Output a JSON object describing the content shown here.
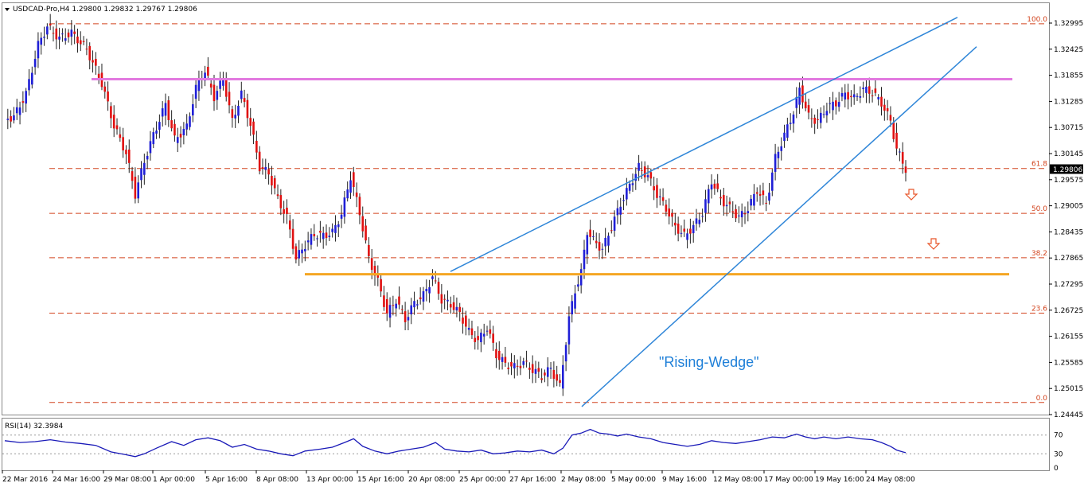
{
  "header": {
    "title": "USDCAD-Pro,H4  1.29800 1.29832 1.29767 1.29806"
  },
  "colors": {
    "bull": "#1f1fd6",
    "bear": "#e01010",
    "fib": "#d2441e",
    "resistance": "#e27ae0",
    "support": "#f5a623",
    "trend": "#2f86d8",
    "rsi": "#1a1ab8",
    "arrow": "#e8562a"
  },
  "chart_data": {
    "type": "candlestick",
    "symbol": "USDCAD-Pro",
    "timeframe": "H4",
    "ohlc_last": {
      "open": 1.298,
      "high": 1.29832,
      "low": 1.29767,
      "close": 1.29806
    },
    "current_price": "1.29806",
    "ylim": [
      1.2442,
      1.3321
    ],
    "yticks": [
      "1.32995",
      "1.32425",
      "1.31855",
      "1.31285",
      "1.30715",
      "1.30145",
      "1.29575",
      "1.29005",
      "1.28435",
      "1.27865",
      "1.27295",
      "1.26725",
      "1.26155",
      "1.25585",
      "1.25015",
      "1.24445"
    ],
    "xticks": [
      "22 Mar 2016",
      "24 Mar 16:00",
      "29 Mar 08:00",
      "1 Apr 00:00",
      "5 Apr 16:00",
      "8 Apr 08:00",
      "13 Apr 00:00",
      "15 Apr 16:00",
      "20 Apr 08:00",
      "25 Apr 00:00",
      "27 Apr 16:00",
      "2 May 08:00",
      "5 May 00:00",
      "9 May 16:00",
      "12 May 08:00",
      "17 May 00:00",
      "19 May 16:00",
      "24 May 08:00"
    ],
    "close_path": [
      [
        0,
        1.309
      ],
      [
        6,
        1.3095
      ],
      [
        14,
        1.3145
      ],
      [
        22,
        1.3252
      ],
      [
        28,
        1.3292
      ],
      [
        36,
        1.3266
      ],
      [
        44,
        1.3278
      ],
      [
        54,
        1.3242
      ],
      [
        64,
        1.3168
      ],
      [
        72,
        1.3075
      ],
      [
        80,
        1.3015
      ],
      [
        86,
        1.2925
      ],
      [
        92,
        1.2998
      ],
      [
        98,
        1.3055
      ],
      [
        106,
        1.3122
      ],
      [
        112,
        1.3045
      ],
      [
        120,
        1.3072
      ],
      [
        126,
        1.3158
      ],
      [
        132,
        1.3195
      ],
      [
        138,
        1.3138
      ],
      [
        144,
        1.3178
      ],
      [
        150,
        1.3085
      ],
      [
        156,
        1.3145
      ],
      [
        162,
        1.3078
      ],
      [
        168,
        1.2985
      ],
      [
        174,
        1.2972
      ],
      [
        180,
        1.2915
      ],
      [
        186,
        1.2875
      ],
      [
        192,
        1.2785
      ],
      [
        198,
        1.2815
      ],
      [
        204,
        1.2838
      ],
      [
        210,
        1.2835
      ],
      [
        216,
        1.2842
      ],
      [
        222,
        1.2882
      ],
      [
        228,
        1.2965
      ],
      [
        234,
        1.2885
      ],
      [
        240,
        1.2785
      ],
      [
        246,
        1.2735
      ],
      [
        252,
        1.2665
      ],
      [
        258,
        1.2695
      ],
      [
        264,
        1.2652
      ],
      [
        270,
        1.2688
      ],
      [
        276,
        1.2705
      ],
      [
        282,
        1.2745
      ],
      [
        288,
        1.2695
      ],
      [
        294,
        1.2685
      ],
      [
        300,
        1.2665
      ],
      [
        306,
        1.2625
      ],
      [
        312,
        1.2605
      ],
      [
        318,
        1.2635
      ],
      [
        324,
        1.2575
      ],
      [
        330,
        1.2555
      ],
      [
        336,
        1.2548
      ],
      [
        342,
        1.2558
      ],
      [
        348,
        1.2542
      ],
      [
        354,
        1.2528
      ],
      [
        360,
        1.2545
      ],
      [
        366,
        1.2505
      ],
      [
        372,
        1.2655
      ],
      [
        376,
        1.2715
      ],
      [
        380,
        1.2755
      ],
      [
        384,
        1.2845
      ],
      [
        388,
        1.2825
      ],
      [
        394,
        1.2805
      ],
      [
        400,
        1.2855
      ],
      [
        406,
        1.2905
      ],
      [
        412,
        1.2945
      ],
      [
        418,
        1.2985
      ],
      [
        424,
        1.2965
      ],
      [
        430,
        1.2925
      ],
      [
        436,
        1.2895
      ],
      [
        442,
        1.2855
      ],
      [
        448,
        1.2835
      ],
      [
        454,
        1.2855
      ],
      [
        460,
        1.2885
      ],
      [
        466,
        1.2955
      ],
      [
        472,
        1.2915
      ],
      [
        478,
        1.2895
      ],
      [
        484,
        1.2875
      ],
      [
        490,
        1.2895
      ],
      [
        496,
        1.2935
      ],
      [
        502,
        1.2905
      ],
      [
        508,
        1.3005
      ],
      [
        514,
        1.3055
      ],
      [
        520,
        1.3105
      ],
      [
        524,
        1.3155
      ],
      [
        530,
        1.3095
      ],
      [
        536,
        1.3085
      ],
      [
        542,
        1.3115
      ],
      [
        548,
        1.3125
      ],
      [
        554,
        1.3145
      ],
      [
        560,
        1.3135
      ],
      [
        566,
        1.3155
      ],
      [
        572,
        1.3148
      ],
      [
        578,
        1.3125
      ],
      [
        584,
        1.3085
      ],
      [
        588,
        1.3025
      ],
      [
        592,
        1.2995
      ],
      [
        594,
        1.2981
      ]
    ],
    "fibonacci": [
      {
        "label": "100.0",
        "price": 1.3298
      },
      {
        "label": "61.8",
        "price": 1.2982
      },
      {
        "label": "50.0",
        "price": 1.2884
      },
      {
        "label": "38.2",
        "price": 1.2787
      },
      {
        "label": "23.6",
        "price": 1.2666
      },
      {
        "label": "0.0",
        "price": 1.2471
      }
    ],
    "annotations": [
      {
        "type": "text",
        "text": "\"Rising-Wedge\""
      }
    ],
    "rsi": {
      "label": "RSI(14) 32.3984",
      "ylim": [
        0,
        100
      ],
      "levels": [
        "70",
        "30",
        "0"
      ],
      "values": [
        [
          0,
          58
        ],
        [
          10,
          54
        ],
        [
          20,
          56
        ],
        [
          30,
          60
        ],
        [
          40,
          55
        ],
        [
          50,
          52
        ],
        [
          60,
          48
        ],
        [
          70,
          34
        ],
        [
          80,
          28
        ],
        [
          86,
          24
        ],
        [
          92,
          30
        ],
        [
          100,
          42
        ],
        [
          110,
          56
        ],
        [
          118,
          48
        ],
        [
          126,
          60
        ],
        [
          134,
          64
        ],
        [
          142,
          58
        ],
        [
          150,
          44
        ],
        [
          158,
          50
        ],
        [
          166,
          40
        ],
        [
          174,
          36
        ],
        [
          182,
          30
        ],
        [
          190,
          26
        ],
        [
          198,
          36
        ],
        [
          208,
          40
        ],
        [
          216,
          44
        ],
        [
          224,
          54
        ],
        [
          230,
          62
        ],
        [
          236,
          46
        ],
        [
          244,
          36
        ],
        [
          252,
          30
        ],
        [
          260,
          36
        ],
        [
          268,
          40
        ],
        [
          276,
          44
        ],
        [
          284,
          54
        ],
        [
          290,
          40
        ],
        [
          298,
          36
        ],
        [
          306,
          34
        ],
        [
          314,
          38
        ],
        [
          322,
          30
        ],
        [
          330,
          32
        ],
        [
          338,
          36
        ],
        [
          346,
          34
        ],
        [
          354,
          38
        ],
        [
          362,
          30
        ],
        [
          368,
          42
        ],
        [
          374,
          70
        ],
        [
          380,
          74
        ],
        [
          386,
          82
        ],
        [
          392,
          74
        ],
        [
          398,
          72
        ],
        [
          404,
          68
        ],
        [
          410,
          72
        ],
        [
          418,
          66
        ],
        [
          426,
          62
        ],
        [
          434,
          54
        ],
        [
          442,
          50
        ],
        [
          450,
          46
        ],
        [
          458,
          50
        ],
        [
          466,
          58
        ],
        [
          474,
          54
        ],
        [
          482,
          52
        ],
        [
          490,
          56
        ],
        [
          498,
          60
        ],
        [
          506,
          66
        ],
        [
          514,
          64
        ],
        [
          522,
          72
        ],
        [
          528,
          66
        ],
        [
          534,
          62
        ],
        [
          540,
          66
        ],
        [
          548,
          62
        ],
        [
          556,
          66
        ],
        [
          564,
          62
        ],
        [
          572,
          60
        ],
        [
          578,
          54
        ],
        [
          584,
          46
        ],
        [
          588,
          38
        ],
        [
          592,
          34
        ],
        [
          594,
          32.4
        ]
      ]
    }
  }
}
